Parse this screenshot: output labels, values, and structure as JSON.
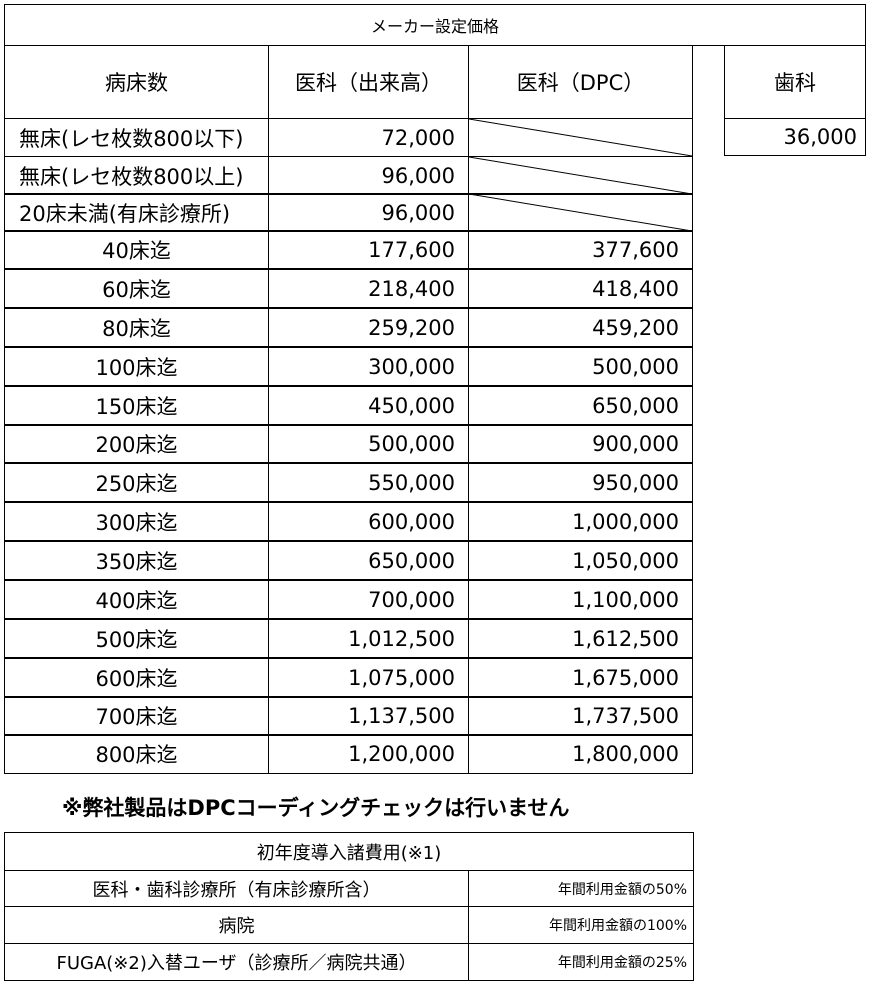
{
  "price_table": {
    "title": "メーカー設定価格",
    "headers": {
      "beds": "病床数",
      "medical_fee": "医科（出来高）",
      "medical_dpc": "医科（DPC）",
      "dental": "歯科"
    },
    "dental_value": "36,000",
    "rows": [
      {
        "label": "無床(レセ枚数800以下)",
        "fee": "72,000",
        "dpc": null
      },
      {
        "label": "無床(レセ枚数800以上)",
        "fee": "96,000",
        "dpc": null
      },
      {
        "label": "20床未満(有床診療所)",
        "fee": "96,000",
        "dpc": null
      },
      {
        "label": "40床迄",
        "fee": "177,600",
        "dpc": "377,600"
      },
      {
        "label": "60床迄",
        "fee": "218,400",
        "dpc": "418,400"
      },
      {
        "label": "80床迄",
        "fee": "259,200",
        "dpc": "459,200"
      },
      {
        "label": "100床迄",
        "fee": "300,000",
        "dpc": "500,000"
      },
      {
        "label": "150床迄",
        "fee": "450,000",
        "dpc": "650,000"
      },
      {
        "label": "200床迄",
        "fee": "500,000",
        "dpc": "900,000"
      },
      {
        "label": "250床迄",
        "fee": "550,000",
        "dpc": "950,000"
      },
      {
        "label": "300床迄",
        "fee": "600,000",
        "dpc": "1,000,000"
      },
      {
        "label": "350床迄",
        "fee": "650,000",
        "dpc": "1,050,000"
      },
      {
        "label": "400床迄",
        "fee": "700,000",
        "dpc": "1,100,000"
      },
      {
        "label": "500床迄",
        "fee": "1,012,500",
        "dpc": "1,612,500"
      },
      {
        "label": "600床迄",
        "fee": "1,075,000",
        "dpc": "1,675,000"
      },
      {
        "label": "700床迄",
        "fee": "1,137,500",
        "dpc": "1,737,500"
      },
      {
        "label": "800床迄",
        "fee": "1,200,000",
        "dpc": "1,800,000"
      }
    ]
  },
  "notice": "※弊社製品はDPCコーディングチェックは行いません",
  "initial_fee_table": {
    "title": "初年度導入諸費用(※1)",
    "rows": [
      {
        "label": "医科・歯科診療所（有床診療所含）",
        "value": "年間利用金額の50%"
      },
      {
        "label": "病院",
        "value": "年間利用金額の100%"
      },
      {
        "label": "FUGA(※2)入替ユーザ（診療所／病院共通）",
        "value": "年間利用金額の25%"
      }
    ]
  }
}
